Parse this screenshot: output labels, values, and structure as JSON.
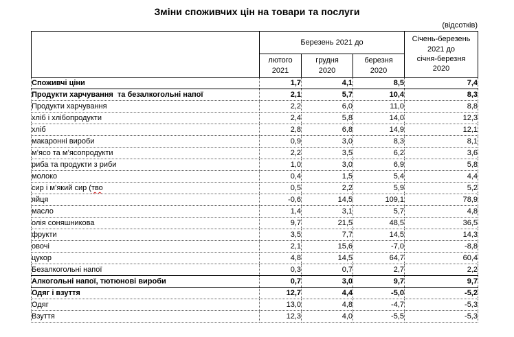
{
  "title": "Зміни споживчих цін на товари та послуги",
  "unit_note": "(відсотків)",
  "table": {
    "corner_label": "",
    "group_header": "Березень 2021 до",
    "sub_columns": [
      "лютого\n2021",
      "грудня\n2020",
      "березня\n2020"
    ],
    "period_header": "Січень-березень\n2021 до\nсічня-березня\n2020",
    "rows": [
      {
        "label": "Споживчі ціни",
        "indent": 0,
        "bold": true,
        "values": [
          "1,7",
          "4,1",
          "8,5",
          "7,4"
        ]
      },
      {
        "label": "Продукти харчування  та безалкогольні напої",
        "indent": 1,
        "bold": true,
        "values": [
          "2,1",
          "5,7",
          "10,4",
          "8,3"
        ]
      },
      {
        "label": "Продукти харчування",
        "indent": 2,
        "bold": false,
        "values": [
          "2,2",
          "6,0",
          "11,0",
          "8,8"
        ]
      },
      {
        "label": "хліб і хлібопродукти",
        "indent": 3,
        "bold": false,
        "values": [
          "2,4",
          "5,8",
          "14,0",
          "12,3"
        ]
      },
      {
        "label": "хліб",
        "indent": 3,
        "bold": false,
        "values": [
          "2,8",
          "6,8",
          "14,9",
          "12,1"
        ]
      },
      {
        "label": "макаронні вироби",
        "indent": 3,
        "bold": false,
        "values": [
          "0,9",
          "3,0",
          "8,3",
          "8,1"
        ]
      },
      {
        "label": "м’ясо та м’ясопродукти",
        "indent": 3,
        "bold": false,
        "values": [
          "2,2",
          "3,5",
          "6,2",
          "3,6"
        ]
      },
      {
        "label": "риба та продукти з риби",
        "indent": 3,
        "bold": false,
        "values": [
          "1,0",
          "3,0",
          "6,9",
          "5,8"
        ]
      },
      {
        "label": "молоко",
        "indent": 3,
        "bold": false,
        "values": [
          "0,4",
          "1,5",
          "5,4",
          "4,4"
        ]
      },
      {
        "label": "сир і м’який сир (",
        "misspelled": "тво",
        "indent": 3,
        "bold": false,
        "values": [
          "0,5",
          "2,2",
          "5,9",
          "5,2"
        ]
      },
      {
        "label": "яйця",
        "indent": 3,
        "bold": false,
        "values": [
          "-0,6",
          "14,5",
          "109,1",
          "78,9"
        ]
      },
      {
        "label": "масло",
        "indent": 3,
        "bold": false,
        "values": [
          "1,4",
          "3,1",
          "5,7",
          "4,8"
        ]
      },
      {
        "label": "олія соняшникова",
        "indent": 3,
        "bold": false,
        "values": [
          "9,7",
          "21,5",
          "48,5",
          "36,5"
        ]
      },
      {
        "label": "фрукти",
        "indent": 3,
        "bold": false,
        "values": [
          "3,5",
          "7,7",
          "14,5",
          "14,3"
        ]
      },
      {
        "label": "овочі",
        "indent": 3,
        "bold": false,
        "values": [
          "2,1",
          "15,6",
          "-7,0",
          "-8,8"
        ]
      },
      {
        "label": "цукор",
        "indent": 3,
        "bold": false,
        "values": [
          "4,8",
          "14,5",
          "64,7",
          "60,4"
        ]
      },
      {
        "label": "Безалкогольні напої",
        "indent": 2,
        "bold": false,
        "values": [
          "0,3",
          "0,7",
          "2,7",
          "2,2"
        ]
      },
      {
        "label": "Алкогольні напої, тютюнові вироби",
        "indent": 1,
        "bold": true,
        "values": [
          "0,7",
          "3,0",
          "9,7",
          "9,7"
        ]
      },
      {
        "label": "Одяг і взуття",
        "indent": 1,
        "bold": true,
        "values": [
          "12,7",
          "4,4",
          "-5,0",
          "-5,2"
        ]
      },
      {
        "label": "Одяг",
        "indent": 2,
        "bold": false,
        "values": [
          "13,0",
          "4,8",
          "-4,7",
          "-5,3"
        ]
      },
      {
        "label": "Взуття",
        "indent": 2,
        "bold": false,
        "values": [
          "12,3",
          "4,0",
          "-5,5",
          "-5,3"
        ]
      }
    ]
  }
}
